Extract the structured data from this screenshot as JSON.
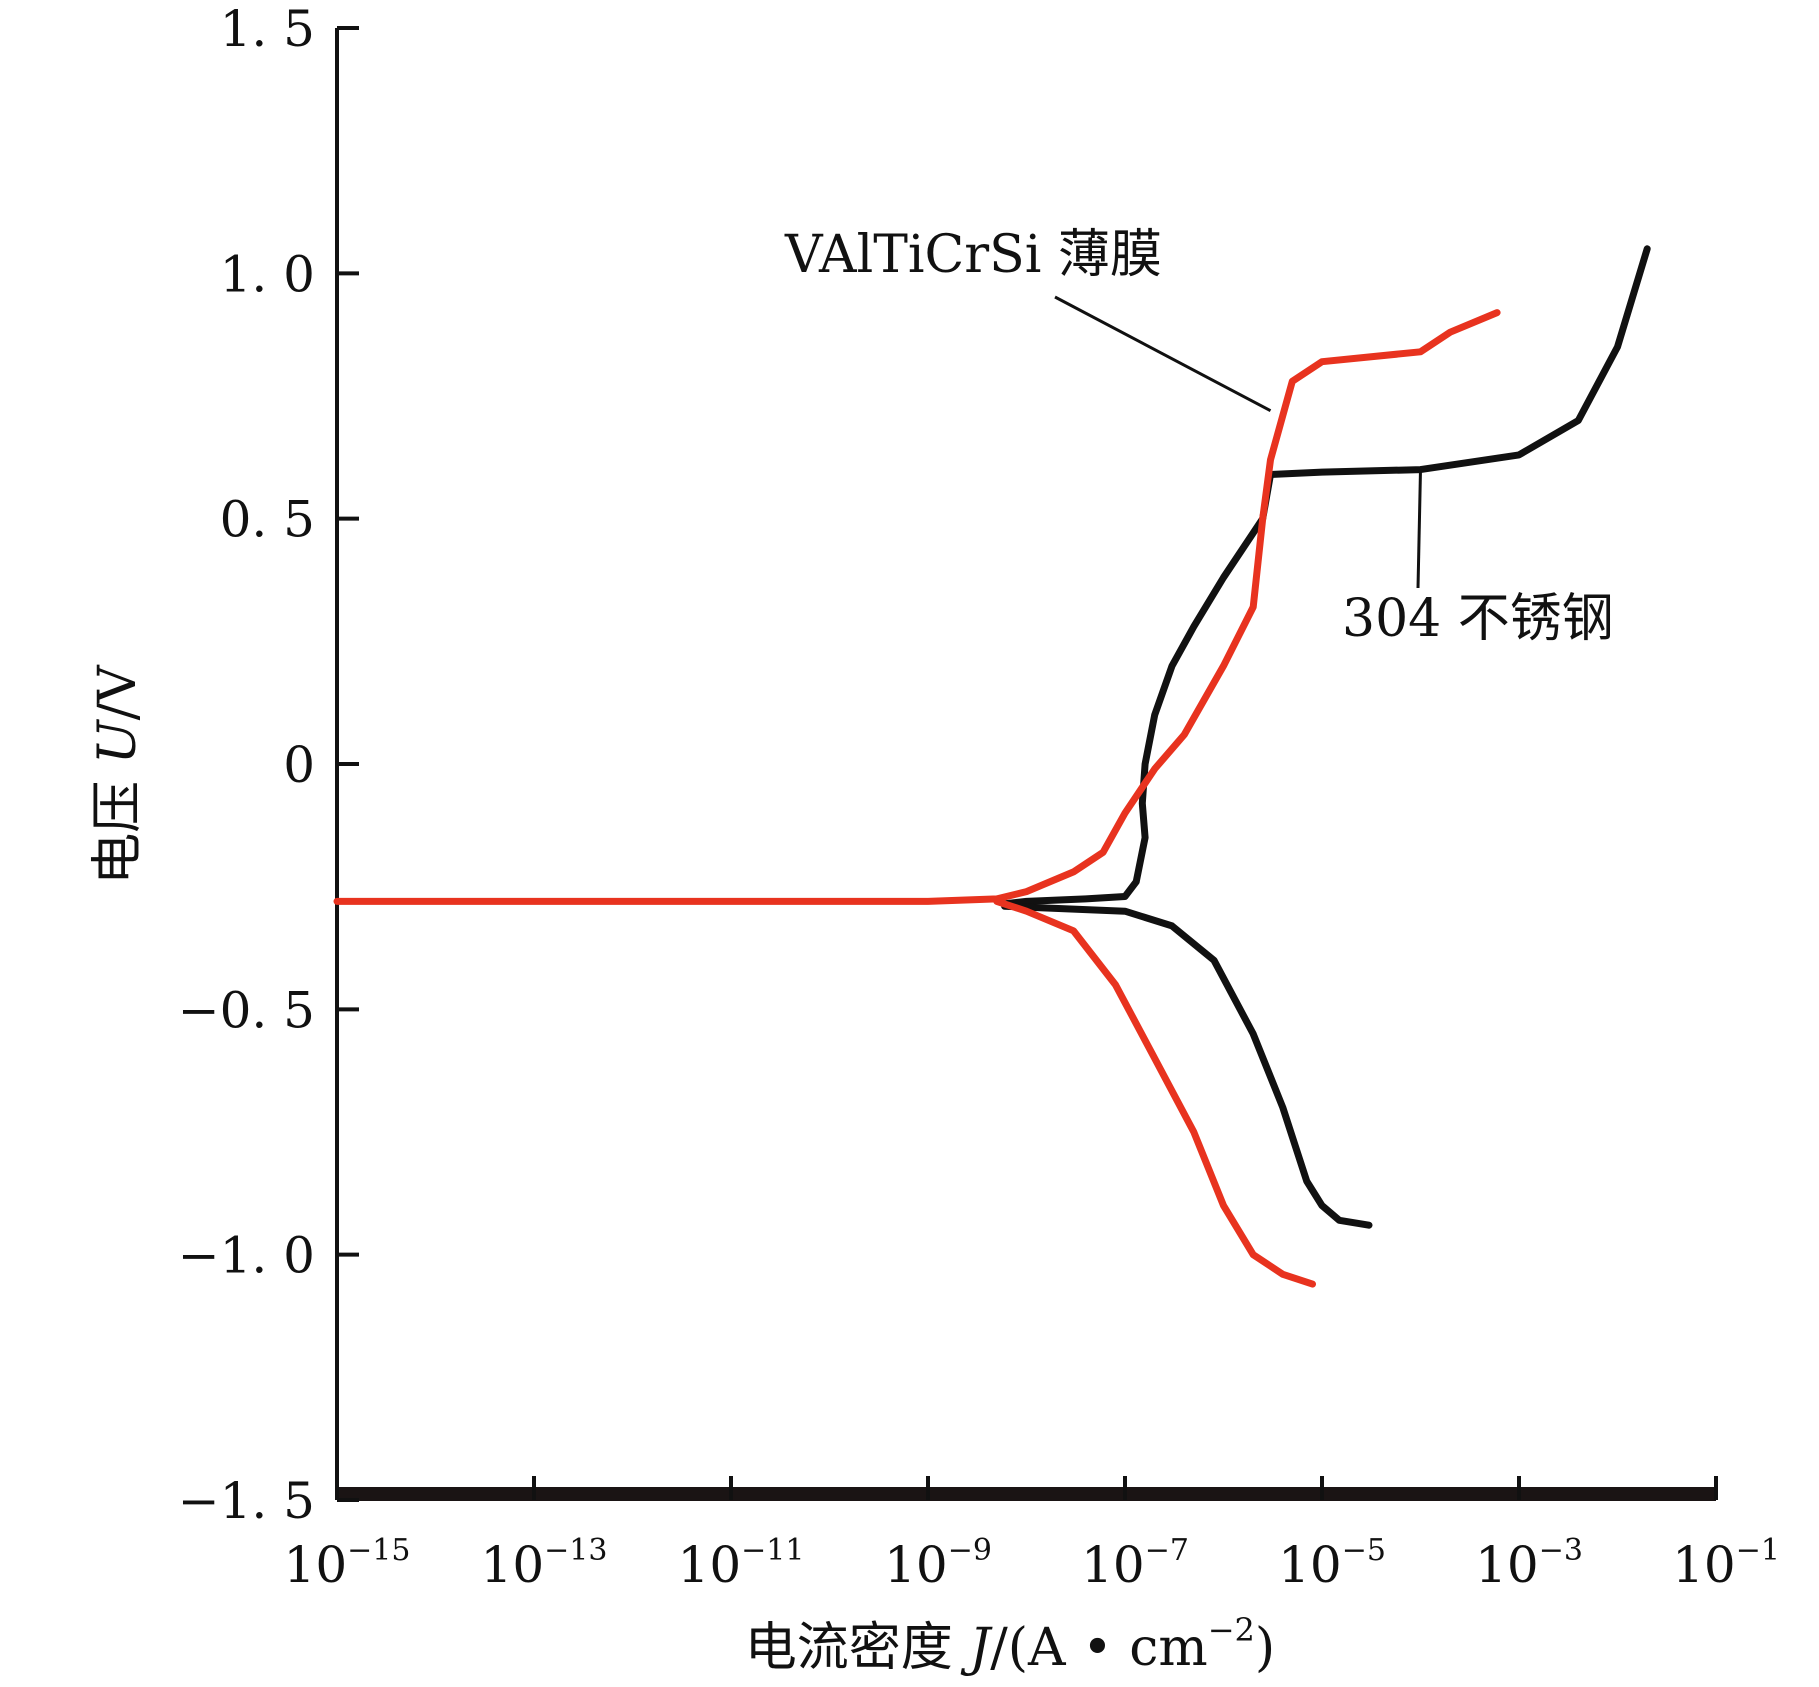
{
  "chart_data": {
    "type": "line",
    "title": "",
    "xlabel": {
      "prefix": "电流密度 ",
      "var": "J",
      "unit_main": "/(A • cm",
      "unit_sup": "−2",
      "unit_end": ")"
    },
    "ylabel": {
      "prefix": "电压 ",
      "var": "U",
      "unit": "/V"
    },
    "x_scale": "log",
    "xlim": [
      1e-15,
      0.1
    ],
    "ylim": [
      -1.5,
      1.5
    ],
    "x_ticks": [
      {
        "value": 1e-15,
        "base": "10",
        "exp": "−15"
      },
      {
        "value": 1e-13,
        "base": "10",
        "exp": "−13"
      },
      {
        "value": 1e-11,
        "base": "10",
        "exp": "−11"
      },
      {
        "value": 1e-09,
        "base": "10",
        "exp": "−9"
      },
      {
        "value": 1e-07,
        "base": "10",
        "exp": "−7"
      },
      {
        "value": 1e-05,
        "base": "10",
        "exp": "−5"
      },
      {
        "value": 0.001,
        "base": "10",
        "exp": "−3"
      },
      {
        "value": 0.1,
        "base": "10",
        "exp": "−1"
      }
    ],
    "y_ticks": [
      {
        "value": 1.5,
        "label": "1. 5"
      },
      {
        "value": 1.0,
        "label": "1. 0"
      },
      {
        "value": 0.5,
        "label": "0. 5"
      },
      {
        "value": 0,
        "label": "0"
      },
      {
        "value": -0.5,
        "label": "−0. 5"
      },
      {
        "value": -1.0,
        "label": "−1. 0"
      },
      {
        "value": -1.5,
        "label": "−1. 5"
      }
    ],
    "grid": false,
    "legend": "none",
    "series": [
      {
        "name": "304 不锈钢",
        "color": "#111111",
        "x": [
          6e-09,
          1e-08,
          4e-08,
          1e-07,
          1.3e-07,
          1.6e-07,
          1.5e-07,
          1.6e-07,
          2e-07,
          3e-07,
          5e-07,
          1e-06,
          2.5e-06,
          3e-06,
          1e-05,
          0.0001,
          0.001,
          0.004,
          0.01,
          0.02
        ],
        "y": [
          -0.285,
          -0.28,
          -0.275,
          -0.27,
          -0.24,
          -0.15,
          -0.08,
          0.0,
          0.1,
          0.2,
          0.28,
          0.38,
          0.5,
          0.59,
          0.595,
          0.6,
          0.63,
          0.7,
          0.85,
          1.05
        ],
        "x2": [
          6e-09,
          1e-07,
          3e-07,
          8e-07,
          2e-06,
          4e-06,
          7e-06,
          1e-05,
          1.5e-05,
          3e-05
        ],
        "y2": [
          -0.29,
          -0.3,
          -0.33,
          -0.4,
          -0.55,
          -0.7,
          -0.85,
          -0.9,
          -0.93,
          -0.94
        ]
      },
      {
        "name": "VAlTiCrSi 薄膜",
        "color": "#e8331f",
        "x": [
          1e-15,
          1e-13,
          1e-11,
          1e-09,
          5e-09,
          1e-08,
          3e-08,
          6e-08,
          1e-07,
          2e-07,
          4e-07,
          1e-06,
          2e-06,
          2.5e-06,
          3e-06,
          5e-06,
          1e-05,
          0.0001,
          0.0002,
          0.0006
        ],
        "y": [
          -0.28,
          -0.28,
          -0.28,
          -0.28,
          -0.275,
          -0.26,
          -0.22,
          -0.18,
          -0.1,
          -0.01,
          0.06,
          0.2,
          0.32,
          0.5,
          0.62,
          0.78,
          0.82,
          0.84,
          0.88,
          0.92
        ],
        "x2": [
          5e-09,
          1e-08,
          3e-08,
          8e-08,
          2e-07,
          5e-07,
          1e-06,
          2e-06,
          4e-06,
          8e-06
        ],
        "y2": [
          -0.28,
          -0.3,
          -0.34,
          -0.45,
          -0.6,
          -0.75,
          -0.9,
          -1.0,
          -1.04,
          -1.06
        ]
      }
    ],
    "annotations": [
      {
        "text": "VAlTiCrSi 薄膜",
        "series": 1,
        "target": {
          "x": 3e-06,
          "y": 0.72
        }
      },
      {
        "text": "304 不锈钢",
        "series": 0,
        "target": {
          "x": 0.0001,
          "y": 0.6
        }
      }
    ]
  }
}
